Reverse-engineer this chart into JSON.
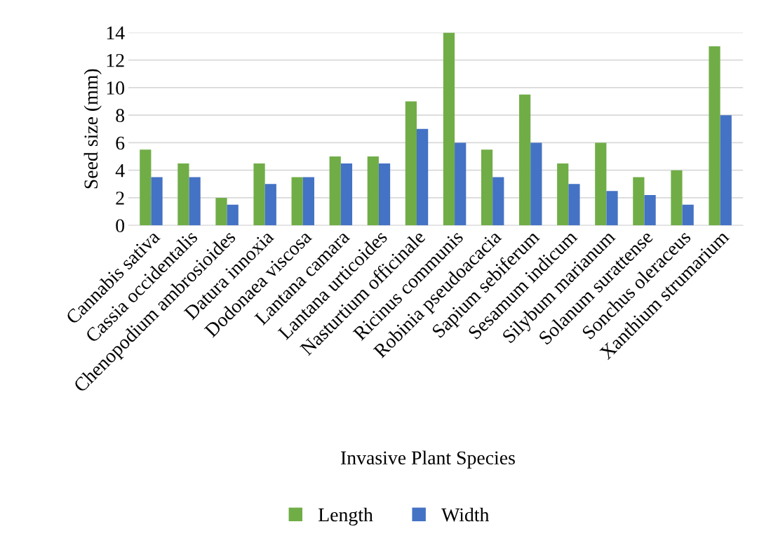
{
  "chart_data": {
    "type": "bar",
    "xlabel": "Invasive Plant Species",
    "ylabel": "Seed size (mm)",
    "categories": [
      "Cannabis sativa",
      "Cassia occidentalis",
      "Chenopodium ambrosioides",
      "Datura innoxia",
      "Dodonaea viscosa",
      "Lantana camara",
      "Lantana urticoides",
      "Nasturtium officinale",
      "Ricinus communis",
      "Robinia pseudoacacia",
      "Sapium sebiferum",
      "Sesamum indicum",
      "Silybum marianum",
      "Solanum surattense",
      "Sonchus oleraceus",
      "Xanthium strumarium"
    ],
    "series": [
      {
        "name": "Length",
        "color": "#70ad47",
        "values": [
          5.5,
          4.5,
          2,
          4.5,
          3.5,
          5,
          5,
          9,
          14,
          5.5,
          9.5,
          4.5,
          6,
          3.5,
          4,
          13
        ]
      },
      {
        "name": "Width",
        "color": "#4472c4",
        "values": [
          3.5,
          3.5,
          1.5,
          3,
          3.5,
          4.5,
          4.5,
          7,
          6,
          3.5,
          6,
          3,
          2.5,
          2.2,
          1.5,
          8
        ]
      }
    ],
    "ylim": [
      0,
      14
    ],
    "yticks": [
      0,
      2,
      4,
      6,
      8,
      10,
      12,
      14
    ],
    "grid": "y",
    "legend": "bottom"
  }
}
